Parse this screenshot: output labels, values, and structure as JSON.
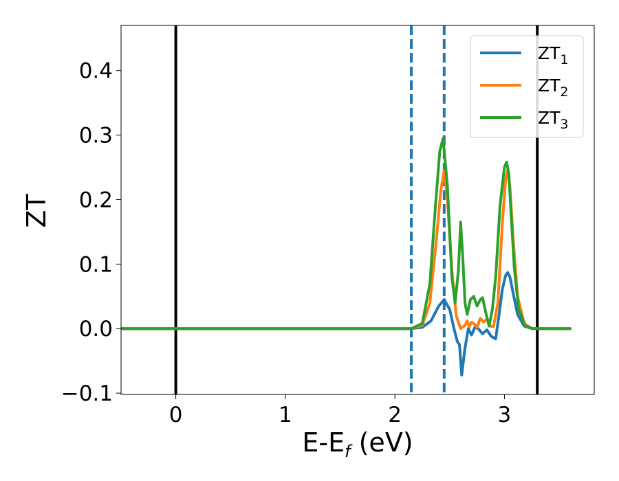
{
  "chart_data": {
    "type": "line",
    "xlabel": {
      "main": "E-E",
      "sub": "f",
      "unit": " (eV)"
    },
    "ylabel": "ZT",
    "xlim": [
      -0.5,
      3.82
    ],
    "ylim": [
      -0.102,
      0.47
    ],
    "x_ticks": [
      {
        "value": 0,
        "label": "0"
      },
      {
        "value": 1,
        "label": "1"
      },
      {
        "value": 2,
        "label": "2"
      },
      {
        "value": 3,
        "label": "3"
      }
    ],
    "y_ticks": [
      {
        "value": -0.1,
        "label": "−0.1"
      },
      {
        "value": 0.0,
        "label": "0.0"
      },
      {
        "value": 0.1,
        "label": "0.1"
      },
      {
        "value": 0.2,
        "label": "0.2"
      },
      {
        "value": 0.3,
        "label": "0.3"
      },
      {
        "value": 0.4,
        "label": "0.4"
      }
    ],
    "grid": false,
    "legend_position": "top-right",
    "vertical_lines": [
      {
        "x": 0.0,
        "style": "solid",
        "color": "#000000"
      },
      {
        "x": 3.3,
        "style": "solid",
        "color": "#000000"
      },
      {
        "x": 2.15,
        "style": "dashed",
        "color": "#1f77b4"
      },
      {
        "x": 2.45,
        "style": "dashed",
        "color": "#1f77b4"
      }
    ],
    "series": [
      {
        "name": "ZT",
        "sub": "1",
        "color": "#1f77b4",
        "x": [
          -0.5,
          2.15,
          2.25,
          2.33,
          2.4,
          2.45,
          2.5,
          2.54,
          2.57,
          2.59,
          2.61,
          2.64,
          2.67,
          2.7,
          2.73,
          2.76,
          2.8,
          2.84,
          2.88,
          2.92,
          2.95,
          2.98,
          3.01,
          3.03,
          3.05,
          3.08,
          3.12,
          3.18,
          3.25,
          3.35,
          3.6
        ],
        "y": [
          0.0,
          0.0,
          0.002,
          0.012,
          0.035,
          0.045,
          0.03,
          0.0,
          -0.02,
          -0.025,
          -0.072,
          -0.03,
          0.0,
          -0.01,
          0.002,
          0.0,
          -0.008,
          -0.002,
          -0.012,
          -0.016,
          0.02,
          0.06,
          0.082,
          0.087,
          0.08,
          0.055,
          0.022,
          0.004,
          0.0,
          0.0,
          0.0
        ]
      },
      {
        "name": "ZT",
        "sub": "2",
        "color": "#ff7f0e",
        "x": [
          -0.5,
          2.15,
          2.25,
          2.32,
          2.38,
          2.42,
          2.45,
          2.48,
          2.52,
          2.56,
          2.6,
          2.64,
          2.66,
          2.68,
          2.7,
          2.72,
          2.75,
          2.78,
          2.81,
          2.84,
          2.87,
          2.9,
          2.94,
          2.98,
          3.01,
          3.03,
          3.05,
          3.08,
          3.12,
          3.18,
          3.25,
          3.6
        ],
        "y": [
          0.0,
          0.0,
          0.005,
          0.04,
          0.14,
          0.215,
          0.245,
          0.2,
          0.09,
          0.02,
          0.0,
          0.005,
          0.012,
          0.003,
          0.01,
          0.008,
          0.002,
          0.016,
          0.01,
          0.015,
          0.004,
          0.003,
          0.04,
          0.16,
          0.23,
          0.245,
          0.22,
          0.14,
          0.05,
          0.008,
          0.0,
          0.0
        ]
      },
      {
        "name": "ZT",
        "sub": "3",
        "color": "#2ca02c",
        "x": [
          -0.5,
          2.15,
          2.25,
          2.32,
          2.37,
          2.41,
          2.44,
          2.48,
          2.52,
          2.55,
          2.58,
          2.6,
          2.62,
          2.64,
          2.66,
          2.69,
          2.72,
          2.75,
          2.78,
          2.8,
          2.83,
          2.86,
          2.89,
          2.92,
          2.96,
          3.0,
          3.02,
          3.04,
          3.06,
          3.09,
          3.13,
          3.19,
          3.26,
          3.6
        ],
        "y": [
          0.0,
          0.0,
          0.008,
          0.07,
          0.19,
          0.275,
          0.295,
          0.22,
          0.08,
          0.04,
          0.09,
          0.165,
          0.11,
          0.04,
          0.022,
          0.045,
          0.05,
          0.035,
          0.045,
          0.048,
          0.025,
          0.004,
          0.03,
          0.08,
          0.19,
          0.25,
          0.258,
          0.24,
          0.18,
          0.095,
          0.03,
          0.004,
          0.0,
          0.0
        ]
      }
    ]
  }
}
